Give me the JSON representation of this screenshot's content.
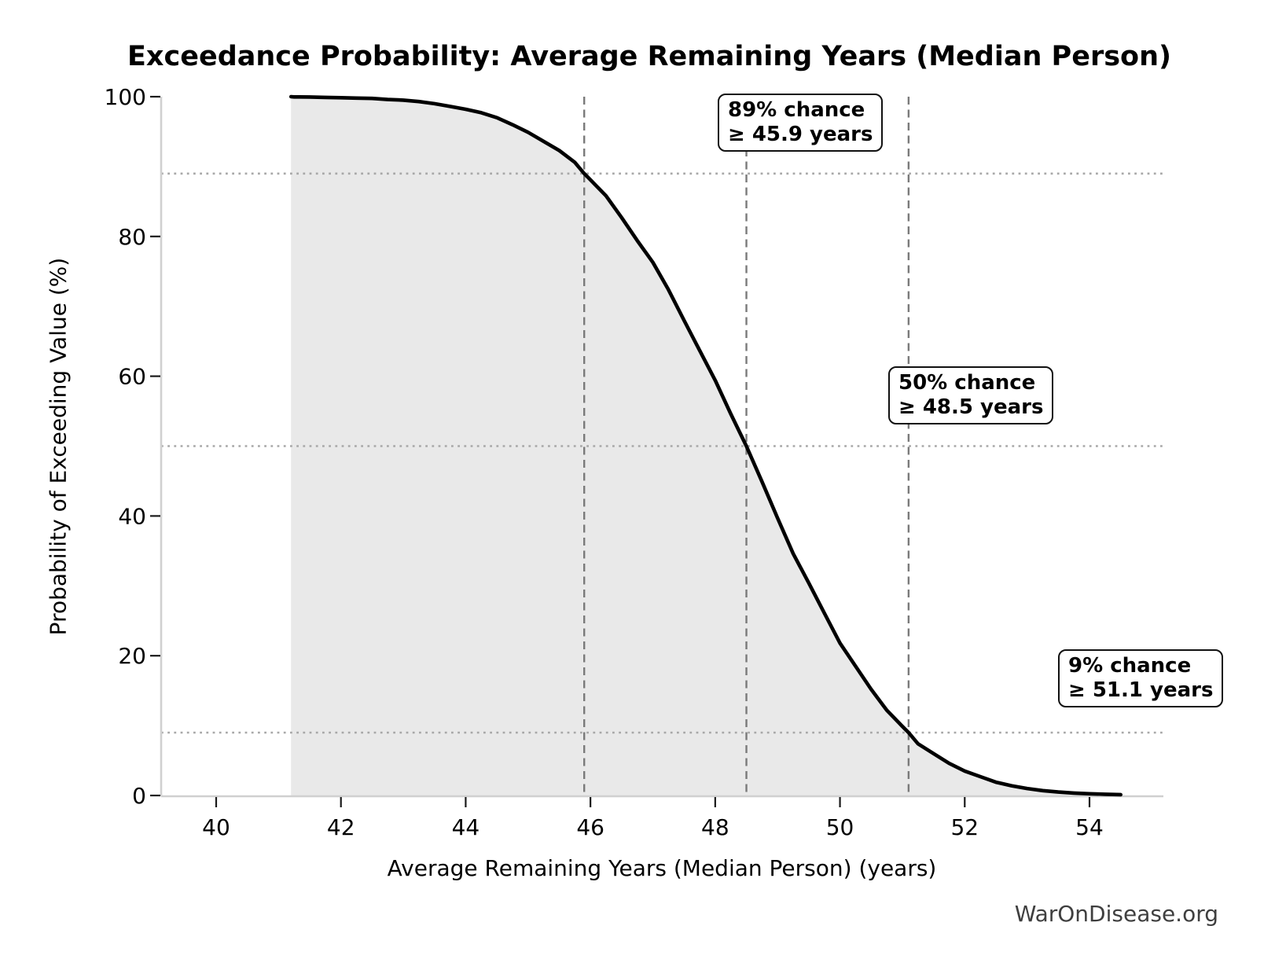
{
  "page": {
    "background_color": "#ffffff",
    "watermark": "WarOnDisease.org"
  },
  "chart_data": {
    "type": "area",
    "title": "Exceedance Probability: Average Remaining Years (Median Person)",
    "xlabel": "Average Remaining Years (Median Person) (years)",
    "ylabel": "Probability of Exceeding Value (%)",
    "xlim": [
      39.1,
      55.2
    ],
    "ylim": [
      0,
      100
    ],
    "x_ticks": [
      "40",
      "42",
      "44",
      "46",
      "48",
      "50",
      "52",
      "54"
    ],
    "x_tick_values": [
      40,
      42,
      44,
      46,
      48,
      50,
      52,
      54
    ],
    "y_ticks": [
      "0",
      "20",
      "40",
      "60",
      "80",
      "100"
    ],
    "y_tick_values": [
      0,
      20,
      40,
      60,
      80,
      100
    ],
    "legend": "none",
    "grid": "dotted horizontal lines only at annotated probabilities; dashed vertical lines at annotated thresholds",
    "series": [
      {
        "name": "exceedance-probability",
        "x": [
          41.2,
          41.25,
          41.5,
          41.75,
          42,
          42.25,
          42.5,
          42.75,
          43,
          43.25,
          43.5,
          43.75,
          44,
          44.25,
          44.5,
          44.75,
          45,
          45.25,
          45.5,
          45.75,
          45.9,
          46,
          46.25,
          46.5,
          46.75,
          47,
          47.25,
          47.5,
          47.75,
          48,
          48.25,
          48.5,
          48.75,
          49,
          49.25,
          49.5,
          49.75,
          50,
          50.25,
          50.5,
          50.75,
          51,
          51.1,
          51.25,
          51.5,
          51.75,
          52,
          52.25,
          52.5,
          52.75,
          53,
          53.25,
          53.5,
          53.75,
          54,
          54.25,
          54.5
        ],
        "y": [
          100,
          99.97,
          99.95,
          99.9,
          99.85,
          99.8,
          99.75,
          99.6,
          99.5,
          99.3,
          99.0,
          98.6,
          98.2,
          97.7,
          97.0,
          96.0,
          94.9,
          93.6,
          92.3,
          90.6,
          89.0,
          88.1,
          85.8,
          82.7,
          79.4,
          76.3,
          72.4,
          68.0,
          63.7,
          59.4,
          54.6,
          50.0,
          44.9,
          39.7,
          34.6,
          30.4,
          26.1,
          21.8,
          18.5,
          15.2,
          12.2,
          9.9,
          9.0,
          7.4,
          6.0,
          4.6,
          3.5,
          2.7,
          1.9,
          1.4,
          1.0,
          0.7,
          0.5,
          0.35,
          0.25,
          0.18,
          0.12
        ]
      }
    ],
    "annotations": [
      {
        "probability_pct": 89,
        "threshold_years": 45.9,
        "line1": "89% chance",
        "line2": "≥ 45.9 years"
      },
      {
        "probability_pct": 50,
        "threshold_years": 48.5,
        "line1": "50% chance",
        "line2": "≥ 48.5 years"
      },
      {
        "probability_pct": 9,
        "threshold_years": 51.1,
        "line1": "9% chance",
        "line2": "≥ 51.1 years"
      }
    ]
  },
  "style": {
    "curve_color": "#000000",
    "area_fill_color": "#e9e9e9",
    "dashed_line_color": "#7a7a7a",
    "dotted_line_color": "#a8a8a8",
    "spine_color": "#d0d0d0",
    "tick_color": "#1a1a1a",
    "text_color": "#000000",
    "watermark_color": "#3f3f3f"
  }
}
